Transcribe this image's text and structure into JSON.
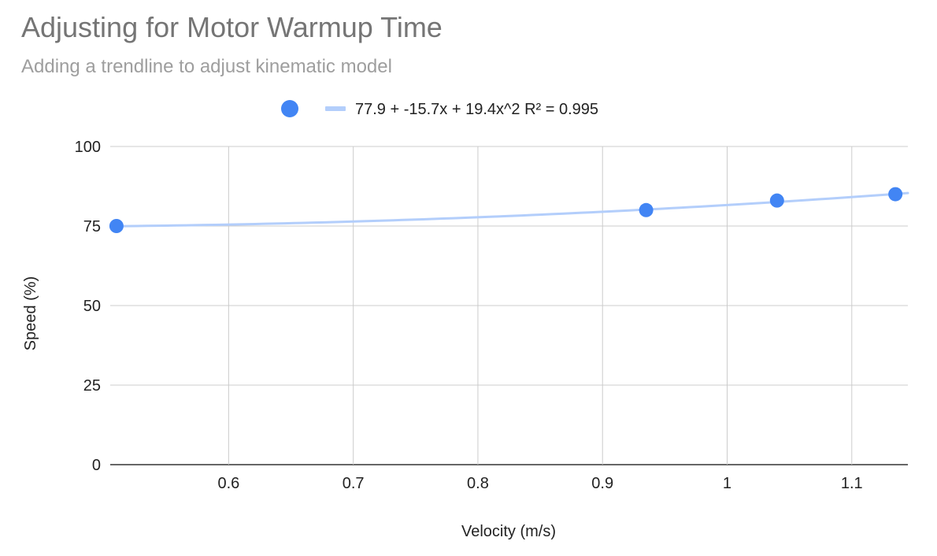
{
  "chart_data": {
    "type": "scatter",
    "title": "Adjusting for Motor Warmup Time",
    "subtitle": "Adding a trendline to adjust kinematic model",
    "xlabel": "Velocity (m/s)",
    "ylabel": "Speed (%)",
    "xlim": [
      0.505,
      1.145
    ],
    "ylim": [
      0,
      100
    ],
    "x_ticks": [
      "0.6",
      "0.7",
      "0.8",
      "0.9",
      "1",
      "1.1"
    ],
    "x_tick_values": [
      0.6,
      0.7,
      0.8,
      0.9,
      1.0,
      1.1
    ],
    "y_ticks": [
      "0",
      "25",
      "50",
      "75",
      "100"
    ],
    "y_tick_values": [
      0,
      25,
      50,
      75,
      100
    ],
    "grid": true,
    "legend_position": "top",
    "series": [
      {
        "x": [
          0.51,
          0.935,
          1.04,
          1.135
        ],
        "y": [
          75,
          80,
          83,
          85
        ],
        "color": "#4285f4"
      }
    ],
    "trendline": {
      "type": "polynomial",
      "degree": 2,
      "coefficients": [
        77.9,
        -15.7,
        19.4
      ],
      "label": "77.9 + -15.7x + 19.4x^2 R² = 0.995",
      "color": "#b3cefb"
    }
  }
}
